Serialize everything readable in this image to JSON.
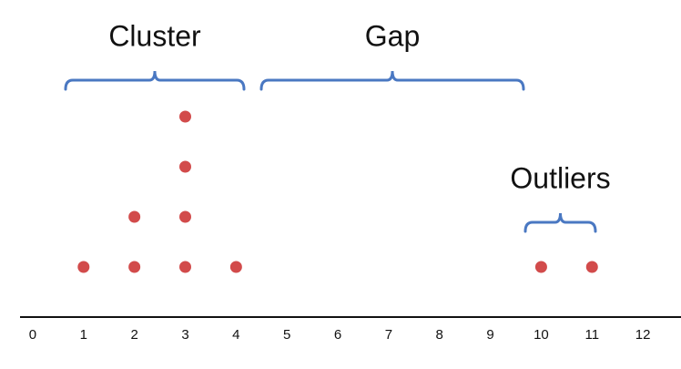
{
  "chart_data": {
    "type": "dotplot",
    "x": [
      1,
      2,
      3,
      4,
      10,
      11
    ],
    "counts": [
      1,
      2,
      4,
      1,
      1,
      1
    ],
    "color": "#d24b4b",
    "xlim": [
      -0.25,
      12.75
    ],
    "xticks": [
      0,
      1,
      2,
      3,
      4,
      5,
      6,
      7,
      8,
      9,
      10,
      11,
      12
    ],
    "grid": false,
    "annotations": [
      "Cluster",
      "Gap",
      "Outliers"
    ]
  }
}
